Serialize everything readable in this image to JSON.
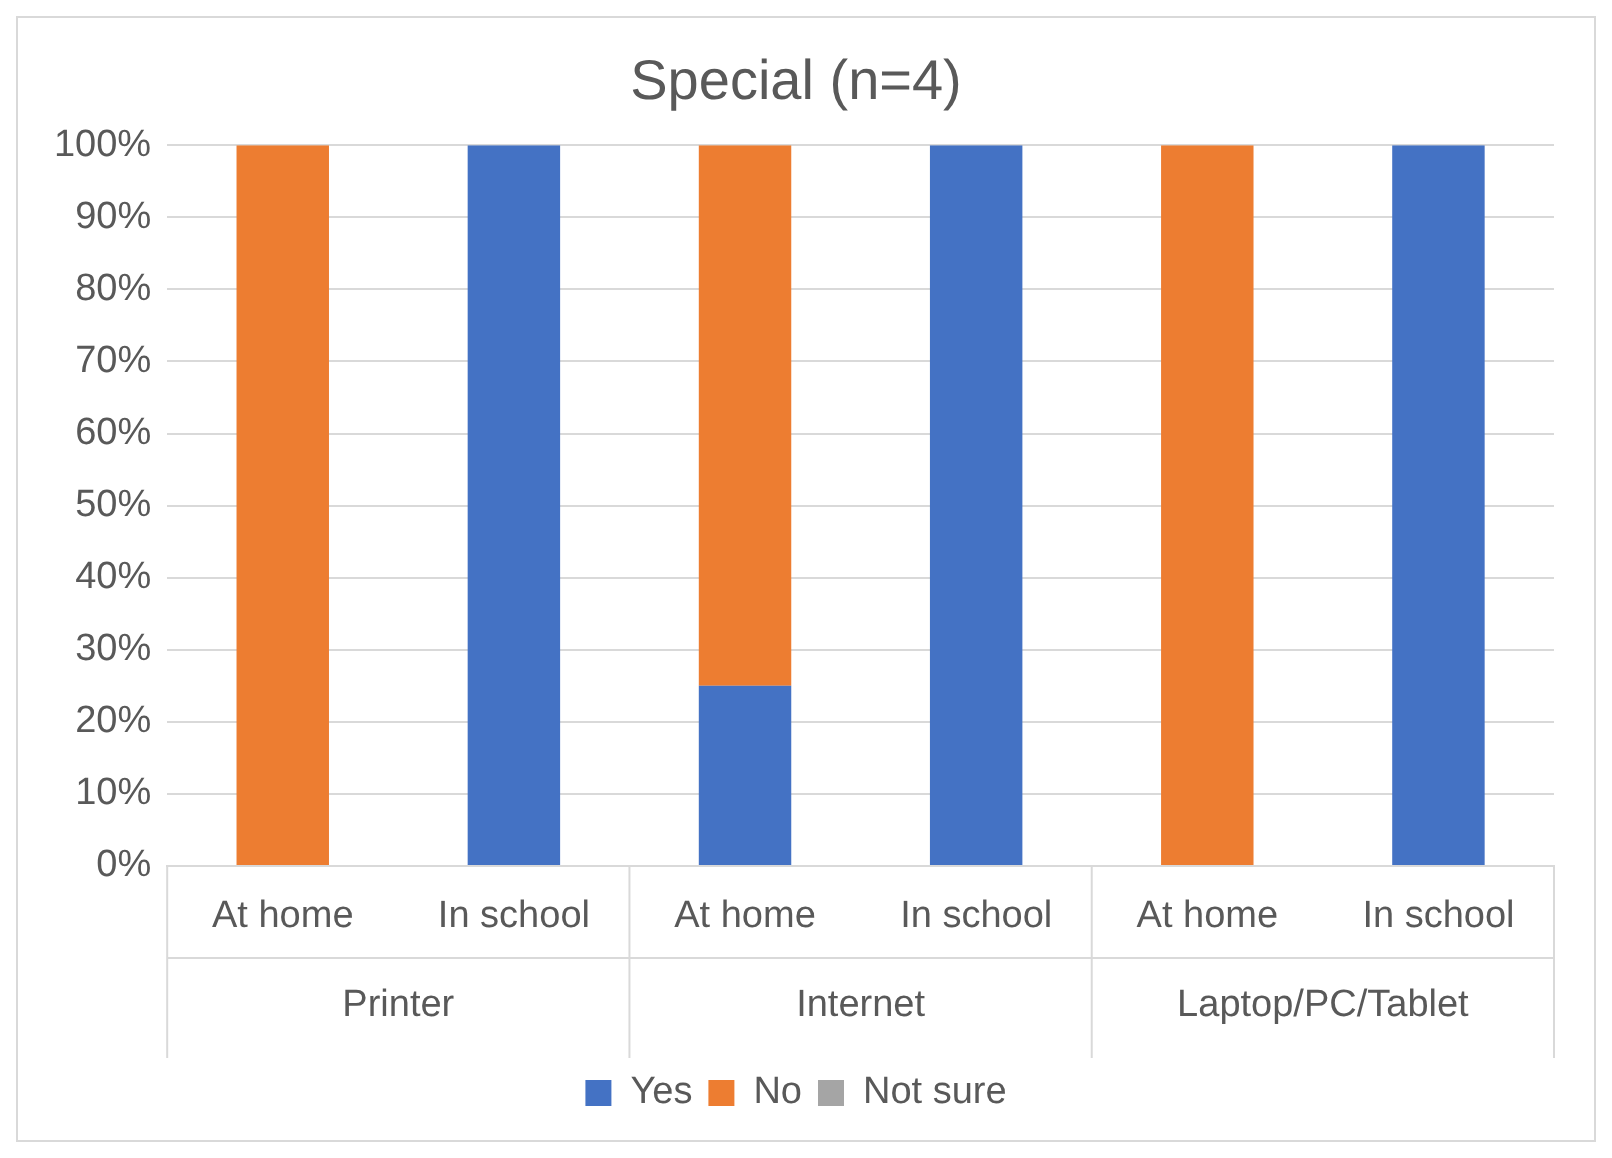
{
  "chart_data": {
    "type": "bar",
    "title": "Special (n=4)",
    "stacked": true,
    "categories": [
      "At home",
      "In school",
      "At home",
      "In school",
      "At home",
      "In school"
    ],
    "annotations": [
      "Printer",
      "Internet",
      "Laptop/PC/Tablet"
    ],
    "series": [
      {
        "name": "Yes",
        "color": "#4472c4",
        "values": [
          0,
          100,
          25,
          100,
          0,
          100
        ]
      },
      {
        "name": "No",
        "color": "#ed7d31",
        "values": [
          100,
          0,
          75,
          0,
          100,
          0
        ]
      },
      {
        "name": "Not sure",
        "color": "#a5a5a5",
        "values": [
          0,
          0,
          0,
          0,
          0,
          0
        ]
      }
    ],
    "ylim": [
      0,
      100
    ],
    "yticks": [
      {
        "value": 0,
        "label": "0%"
      },
      {
        "value": 10,
        "label": "10%"
      },
      {
        "value": 20,
        "label": "20%"
      },
      {
        "value": 30,
        "label": "30%"
      },
      {
        "value": 40,
        "label": "40%"
      },
      {
        "value": 50,
        "label": "50%"
      },
      {
        "value": 60,
        "label": "60%"
      },
      {
        "value": 70,
        "label": "70%"
      },
      {
        "value": 80,
        "label": "80%"
      },
      {
        "value": 90,
        "label": "90%"
      },
      {
        "value": 100,
        "label": "100%"
      }
    ],
    "grid": "y",
    "legend": "bottom"
  }
}
